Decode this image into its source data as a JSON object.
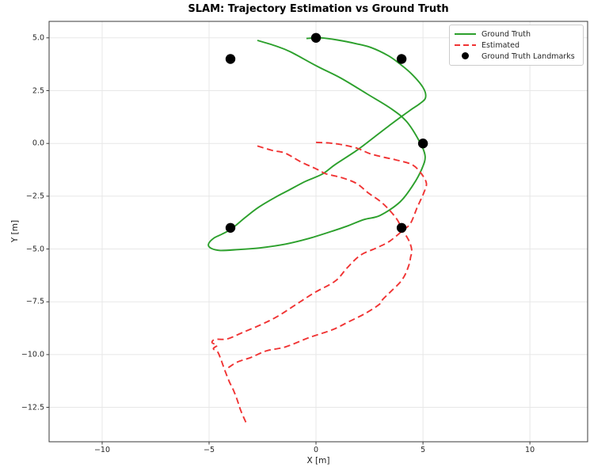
{
  "chart_data": {
    "type": "line",
    "title": "SLAM: Trajectory Estimation vs Ground Truth",
    "xlabel": "X [m]",
    "ylabel": "Y [m]",
    "xlim": [
      -12.48,
      12.7
    ],
    "ylim": [
      -14.13,
      5.78
    ],
    "grid": true,
    "xticks": {
      "values": [
        -10,
        -5,
        0,
        5,
        10
      ],
      "labels": [
        "−10",
        "−5",
        "0",
        "5",
        "10"
      ]
    },
    "yticks": {
      "values": [
        5.0,
        2.5,
        0.0,
        -2.5,
        -5.0,
        -7.5,
        -10.0,
        -12.5
      ],
      "labels": [
        "5.0",
        "2.5",
        "0.0",
        "−2.5",
        "−5.0",
        "−7.5",
        "−10.0",
        "−12.5"
      ]
    },
    "colors": {
      "ground_truth": "#2ca02c",
      "estimated": "#f03333",
      "landmarks": "#000000",
      "grid": "#e7e7e7",
      "spine": "#3a3a3a"
    },
    "legend": {
      "position": "upper right",
      "entries": [
        {
          "label": "Ground Truth",
          "style": "solid",
          "color": "#2ca02c"
        },
        {
          "label": "Estimated",
          "style": "dashed",
          "color": "#f03333"
        },
        {
          "label": "Ground Truth Landmarks",
          "style": "marker",
          "color": "#000000"
        }
      ]
    },
    "series": [
      {
        "name": "Ground Truth",
        "kind": "line",
        "color": "#2ca02c",
        "width": 1.9,
        "dash": null,
        "segments": [
          [
            [
              -2.74,
              4.88
            ],
            [
              -1.9,
              4.62
            ],
            [
              -1.2,
              4.34
            ],
            [
              0.04,
              3.66
            ],
            [
              1.15,
              3.1
            ],
            [
              2.38,
              2.35
            ],
            [
              3.49,
              1.66
            ],
            [
              4.23,
              1.04
            ],
            [
              4.83,
              0.1
            ],
            [
              5.1,
              -0.6
            ],
            [
              4.95,
              -1.2
            ],
            [
              4.55,
              -1.95
            ],
            [
              3.93,
              -2.77
            ],
            [
              3.0,
              -3.41
            ],
            [
              2.26,
              -3.6
            ],
            [
              1.5,
              -3.9
            ],
            [
              0.78,
              -4.15
            ],
            [
              -0.33,
              -4.5
            ],
            [
              -1.44,
              -4.77
            ],
            [
              -2.56,
              -4.94
            ],
            [
              -3.67,
              -5.03
            ],
            [
              -4.48,
              -5.07
            ],
            [
              -4.9,
              -4.97
            ],
            [
              -5.03,
              -4.78
            ],
            [
              -4.8,
              -4.5
            ],
            [
              -4.4,
              -4.3
            ],
            [
              -3.97,
              -4.06
            ],
            [
              -3.3,
              -3.5
            ],
            [
              -2.68,
              -3.02
            ],
            [
              -1.9,
              -2.55
            ],
            [
              -1.32,
              -2.24
            ],
            [
              -0.5,
              -1.8
            ],
            [
              0.28,
              -1.46
            ],
            [
              0.9,
              -1.0
            ],
            [
              1.89,
              -0.34
            ],
            [
              2.7,
              0.28
            ],
            [
              3.5,
              0.9
            ],
            [
              4.36,
              1.54
            ],
            [
              4.85,
              1.88
            ],
            [
              5.12,
              2.16
            ],
            [
              5.02,
              2.62
            ],
            [
              4.48,
              3.28
            ],
            [
              3.9,
              3.78
            ],
            [
              3.37,
              4.16
            ],
            [
              2.6,
              4.53
            ],
            [
              1.89,
              4.72
            ],
            [
              1.0,
              4.9
            ],
            [
              0.2,
              5.0
            ],
            [
              -0.45,
              4.97
            ]
          ]
        ]
      },
      {
        "name": "Estimated",
        "kind": "line",
        "color": "#f03333",
        "width": 1.9,
        "dash": [
          8,
          4.6
        ],
        "segments": [
          [
            [
              0.0,
              0.05
            ],
            [
              0.6,
              0.02
            ],
            [
              1.15,
              -0.05
            ],
            [
              1.9,
              -0.22
            ],
            [
              2.51,
              -0.48
            ],
            [
              3.2,
              -0.66
            ],
            [
              3.74,
              -0.78
            ],
            [
              4.48,
              -1.0
            ],
            [
              4.9,
              -1.4
            ],
            [
              5.16,
              -1.88
            ],
            [
              5.04,
              -2.34
            ],
            [
              4.73,
              -3.03
            ],
            [
              4.42,
              -3.78
            ],
            [
              4.05,
              -4.13
            ],
            [
              3.43,
              -4.64
            ],
            [
              2.81,
              -4.96
            ],
            [
              2.07,
              -5.3
            ],
            [
              1.45,
              -5.9
            ],
            [
              0.9,
              -6.52
            ],
            [
              -0.09,
              -7.08
            ],
            [
              -0.95,
              -7.64
            ],
            [
              -1.81,
              -8.2
            ],
            [
              -2.56,
              -8.58
            ],
            [
              -3.42,
              -8.95
            ],
            [
              -4.16,
              -9.26
            ],
            [
              -4.72,
              -9.28
            ],
            [
              -4.86,
              -9.44
            ],
            [
              -4.62,
              -9.56
            ],
            [
              -4.8,
              -9.72
            ],
            [
              -4.59,
              -9.89
            ],
            [
              -4.44,
              -10.25
            ],
            [
              -4.28,
              -10.7
            ],
            [
              -4.05,
              -11.3
            ],
            [
              -3.91,
              -11.57
            ],
            [
              -3.7,
              -12.1
            ],
            [
              -3.52,
              -12.65
            ],
            [
              -3.23,
              -13.32
            ]
          ],
          [
            [
              -2.74,
              -0.12
            ],
            [
              -2.05,
              -0.33
            ],
            [
              -1.44,
              -0.46
            ],
            [
              -0.7,
              -0.88
            ],
            [
              0.0,
              -1.2
            ],
            [
              0.47,
              -1.44
            ],
            [
              1.2,
              -1.62
            ],
            [
              1.9,
              -1.9
            ],
            [
              2.44,
              -2.34
            ],
            [
              3.12,
              -2.84
            ],
            [
              3.74,
              -3.53
            ],
            [
              4.02,
              -4.05
            ],
            [
              4.36,
              -4.64
            ],
            [
              4.48,
              -5.08
            ],
            [
              4.42,
              -5.4
            ],
            [
              4.36,
              -5.71
            ],
            [
              4.17,
              -6.21
            ],
            [
              3.93,
              -6.58
            ],
            [
              3.49,
              -7.02
            ],
            [
              3.12,
              -7.39
            ],
            [
              2.94,
              -7.64
            ],
            [
              2.26,
              -8.08
            ],
            [
              1.52,
              -8.45
            ],
            [
              0.78,
              -8.82
            ],
            [
              -0.33,
              -9.2
            ],
            [
              -1.44,
              -9.64
            ],
            [
              -2.31,
              -9.82
            ],
            [
              -3.05,
              -10.14
            ],
            [
              -3.67,
              -10.35
            ],
            [
              -4.1,
              -10.62
            ]
          ]
        ]
      },
      {
        "name": "Ground Truth Landmarks",
        "kind": "scatter",
        "color": "#000000",
        "size": 6.2,
        "points": [
          [
            0,
            5
          ],
          [
            -4,
            4
          ],
          [
            4,
            4
          ],
          [
            5,
            0
          ],
          [
            4,
            -4
          ],
          [
            -4,
            -4
          ]
        ]
      }
    ]
  }
}
